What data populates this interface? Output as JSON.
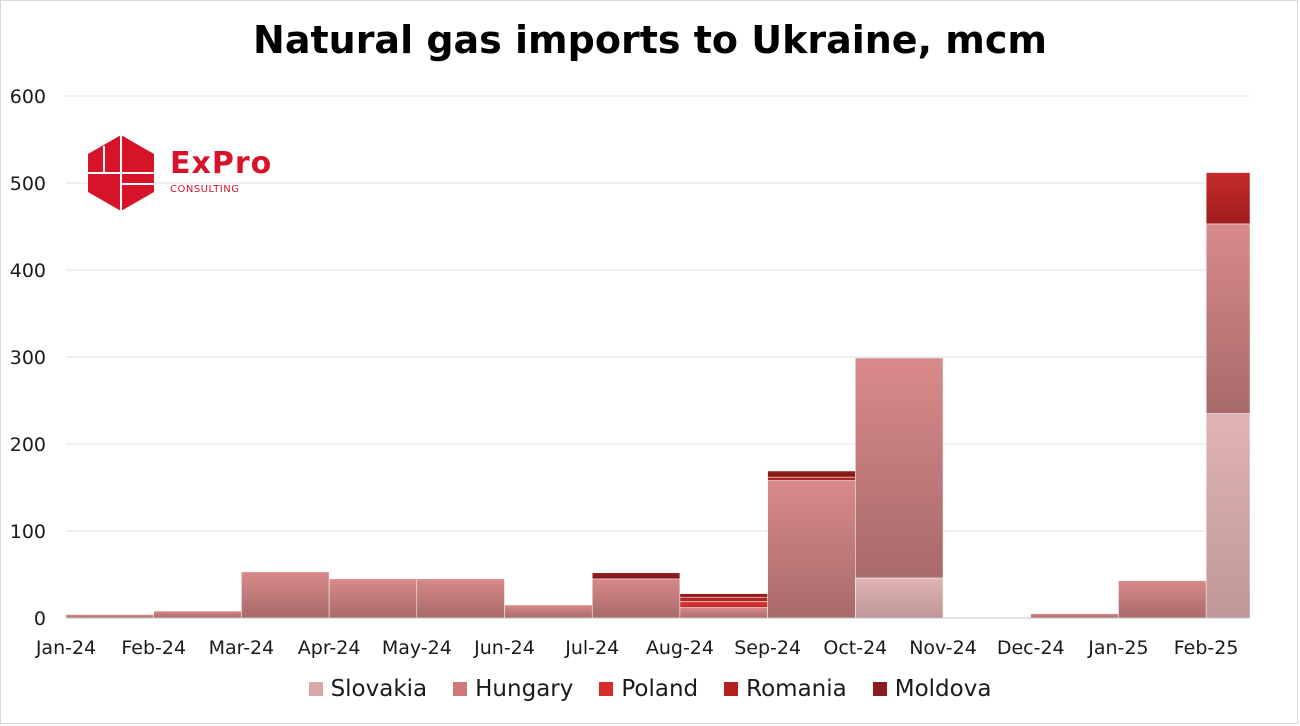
{
  "logo": {
    "word": "ExPro",
    "sub": "CONSULTING"
  },
  "chart_data": {
    "type": "bar",
    "stacked": true,
    "title": "Natural gas imports to Ukraine, mcm",
    "categories": [
      "Jan-24",
      "Feb-24",
      "Mar-24",
      "Apr-24",
      "May-24",
      "Jun-24",
      "Jul-24",
      "Aug-24",
      "Sep-24",
      "Oct-24",
      "Nov-24",
      "Dec-24",
      "Jan-25",
      "Feb-25"
    ],
    "series": [
      {
        "name": "Slovakia",
        "color": "#d9a8a8",
        "values": [
          0,
          0,
          0,
          0,
          0,
          0,
          0,
          0,
          0,
          46,
          0,
          0,
          0,
          235
        ]
      },
      {
        "name": "Hungary",
        "color": "#cf7a7a",
        "values": [
          4,
          8,
          53,
          45,
          45,
          15,
          45,
          12,
          158,
          252,
          0,
          5,
          43,
          218
        ]
      },
      {
        "name": "Poland",
        "color": "#d62b2b",
        "values": [
          0,
          0,
          0,
          0,
          0,
          0,
          0,
          7,
          0,
          0,
          0,
          0,
          0,
          0
        ]
      },
      {
        "name": "Romania",
        "color": "#b32020",
        "values": [
          0,
          0,
          0,
          0,
          0,
          0,
          0,
          5,
          4,
          0,
          0,
          0,
          0,
          59
        ]
      },
      {
        "name": "Moldova",
        "color": "#8b1a1a",
        "values": [
          0,
          0,
          0,
          0,
          0,
          0,
          7,
          4,
          7,
          1,
          0,
          0,
          0,
          0
        ]
      }
    ],
    "ylim": [
      0,
      600
    ],
    "yticks": [
      0,
      100,
      200,
      300,
      400,
      500,
      600
    ],
    "grid": true,
    "legend": "bottom"
  }
}
